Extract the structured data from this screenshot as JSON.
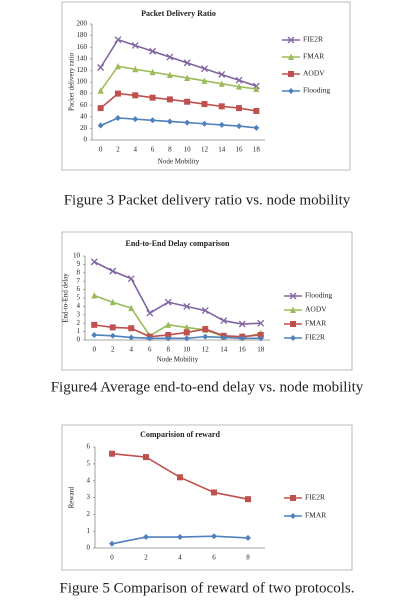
{
  "chart_data": [
    {
      "type": "line",
      "title": "Packet Delivery Ratio",
      "y_label": "Packet delivery ratio",
      "x_label": "Node Mobility",
      "categories": [
        "0",
        "2",
        "4",
        "6",
        "8",
        "10",
        "12",
        "14",
        "16",
        "18"
      ],
      "ylim": [
        0,
        200
      ],
      "yticks": [
        0,
        20,
        40,
        60,
        80,
        100,
        120,
        140,
        160,
        180,
        200
      ],
      "grid": false,
      "series": [
        {
          "name": "FIE2R",
          "color": "#8064a2",
          "marker": "x",
          "values": [
            125,
            173,
            163,
            153,
            143,
            133,
            123,
            113,
            103,
            93
          ]
        },
        {
          "name": "FMAR",
          "color": "#9bbb59",
          "marker": "triangle",
          "values": [
            85,
            127,
            122,
            117,
            112,
            107,
            102,
            97,
            92,
            88
          ]
        },
        {
          "name": "AODV",
          "color": "#c0504d",
          "marker": "square",
          "values": [
            55,
            80,
            77,
            73,
            70,
            66,
            62,
            58,
            55,
            50
          ]
        },
        {
          "name": "Flooding",
          "color": "#4f81bd",
          "marker": "diamond",
          "values": [
            25,
            38,
            36,
            34,
            32,
            30,
            28,
            26,
            24,
            21
          ]
        }
      ]
    },
    {
      "type": "line",
      "title": "End-to-End Delay comparison",
      "y_label": "End-to-End delay",
      "x_label": "Node Mobility",
      "categories": [
        "0",
        "2",
        "4",
        "6",
        "8",
        "10",
        "12",
        "14",
        "16",
        "18"
      ],
      "ylim": [
        0,
        10
      ],
      "yticks": [
        0,
        1,
        2,
        3,
        4,
        5,
        6,
        7,
        8,
        9,
        10
      ],
      "grid": false,
      "series": [
        {
          "name": "Flooding",
          "color": "#8064a2",
          "marker": "x",
          "values": [
            9.3,
            8.2,
            7.3,
            3.2,
            4.5,
            4.0,
            3.5,
            2.3,
            1.9,
            2.0
          ]
        },
        {
          "name": "AODV",
          "color": "#9bbb59",
          "marker": "triangle",
          "values": [
            5.3,
            4.5,
            3.8,
            0.5,
            1.8,
            1.5,
            1.2,
            0.4,
            0.3,
            0.8
          ]
        },
        {
          "name": "FMAR",
          "color": "#c0504d",
          "marker": "square",
          "values": [
            1.8,
            1.5,
            1.4,
            0.4,
            0.6,
            0.9,
            1.3,
            0.5,
            0.4,
            0.6
          ]
        },
        {
          "name": "FIE2R",
          "color": "#4f81bd",
          "marker": "diamond",
          "values": [
            0.6,
            0.5,
            0.3,
            0.2,
            0.2,
            0.2,
            0.4,
            0.3,
            0.2,
            0.2
          ]
        }
      ]
    },
    {
      "type": "line",
      "title": "Comparision of reward",
      "y_label": "Reward",
      "categories": [
        "0",
        "2",
        "4",
        "6",
        "8"
      ],
      "ylim": [
        0,
        6
      ],
      "yticks": [
        0,
        1,
        2,
        3,
        4,
        5,
        6
      ],
      "grid": false,
      "series": [
        {
          "name": "FIE2R",
          "color": "#c0504d",
          "marker": "square",
          "values": [
            5.6,
            5.4,
            4.2,
            3.3,
            2.9
          ]
        },
        {
          "name": "FMAR",
          "color": "#4f81bd",
          "marker": "diamond",
          "values": [
            0.25,
            0.65,
            0.65,
            0.7,
            0.6
          ]
        }
      ]
    }
  ],
  "captions": [
    "Figure 3 Packet delivery ratio vs. node mobility",
    "Figure4 Average end-to-end delay vs. node mobility",
    "Figure 5 Comparison of reward of two protocols."
  ]
}
